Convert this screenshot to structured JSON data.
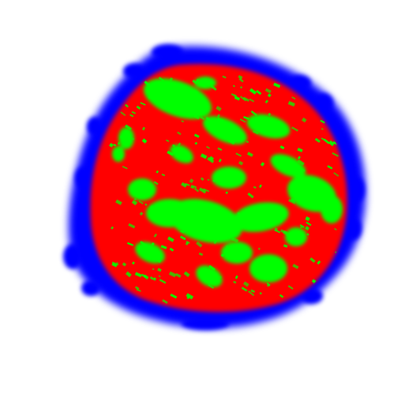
{
  "image": {
    "subject": "segmentation-mask",
    "background_color": "#ffffff",
    "regions": [
      {
        "name": "outer-boundary-layer",
        "color": "#0000ff"
      },
      {
        "name": "core-region",
        "color": "#ff0000"
      },
      {
        "name": "textured-region",
        "color": "#00ff00"
      }
    ]
  }
}
